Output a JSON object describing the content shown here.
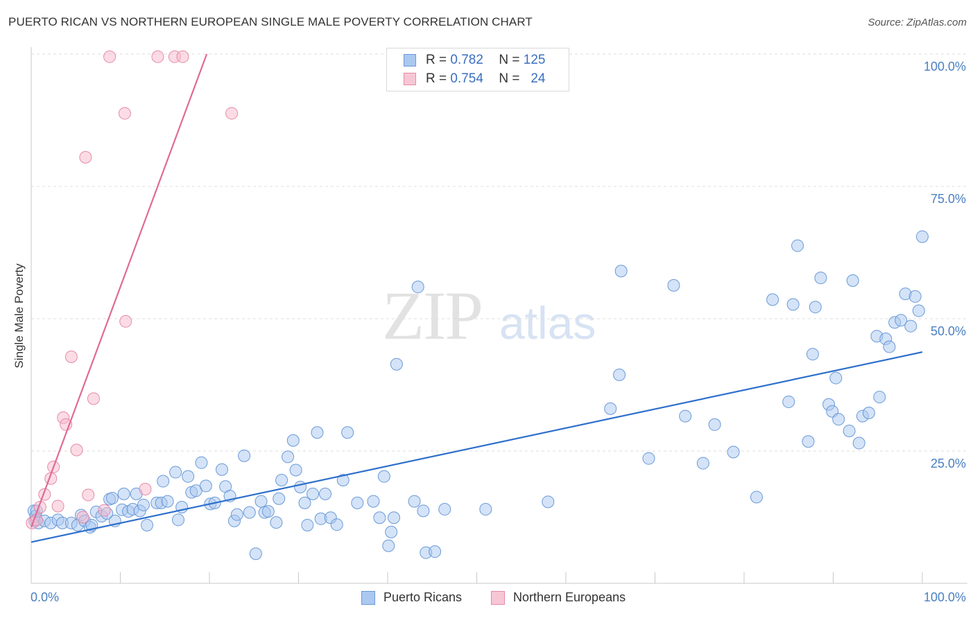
{
  "title": "PUERTO RICAN VS NORTHERN EUROPEAN SINGLE MALE POVERTY CORRELATION CHART",
  "source": "Source: ZipAtlas.com",
  "watermark": {
    "zip": "ZIP",
    "atlas": "atlas"
  },
  "legend_top": {
    "rows": [
      {
        "r_label": "R =",
        "r_value": "0.782",
        "n_label": "N =",
        "n_value": "125"
      },
      {
        "r_label": "R =",
        "r_value": "0.754",
        "n_label": "N =",
        "n_value": "24"
      }
    ]
  },
  "legend_bottom": [
    "Puerto Ricans",
    "Northern Europeans"
  ],
  "colors": {
    "blue_fill": "#aac8f0",
    "blue_stroke": "#6a9ad8",
    "blue_line": "#2d6fcb",
    "pink_fill": "#f7b9cc",
    "pink_stroke": "#e58aa8",
    "pink_line": "#e06a95",
    "grid": "#dedede",
    "axis_label": "#4a7fc1"
  },
  "chart_data": {
    "type": "scatter",
    "title": "PUERTO RICAN VS NORTHERN EUROPEAN SINGLE MALE POVERTY CORRELATION CHART",
    "xlabel": "",
    "ylabel": "Single Male Poverty",
    "xlim": [
      0,
      100
    ],
    "ylim": [
      0,
      102
    ],
    "x_tick_labels": [
      "0.0%",
      "100.0%"
    ],
    "y_tick_labels": [
      "25.0%",
      "50.0%",
      "75.0%",
      "100.0%"
    ],
    "y_ticks": [
      25,
      50,
      75,
      100
    ],
    "grid": "horizontal dashed",
    "legend_placement": "top-center",
    "series": [
      {
        "name": "Puerto Ricans",
        "color": "#6a9ad8",
        "r": 0.782,
        "n": 125,
        "trend": {
          "x": [
            0,
            100
          ],
          "y": [
            7.8,
            43.7
          ]
        },
        "points": [
          [
            0.3,
            13.7
          ],
          [
            0.4,
            11.8
          ],
          [
            0.5,
            12.7
          ],
          [
            0.6,
            13.7
          ],
          [
            0.8,
            11.4
          ],
          [
            1.5,
            11.8
          ],
          [
            2.2,
            11.4
          ],
          [
            3.0,
            12.0
          ],
          [
            3.5,
            11.4
          ],
          [
            4.5,
            11.4
          ],
          [
            5.2,
            11.0
          ],
          [
            5.6,
            12.9
          ],
          [
            6.0,
            11.8
          ],
          [
            6.6,
            10.6
          ],
          [
            6.8,
            11.0
          ],
          [
            7.3,
            13.5
          ],
          [
            7.9,
            12.7
          ],
          [
            8.5,
            13.2
          ],
          [
            8.8,
            15.9
          ],
          [
            9.1,
            16.1
          ],
          [
            9.4,
            11.8
          ],
          [
            10.2,
            13.9
          ],
          [
            10.4,
            16.9
          ],
          [
            10.9,
            13.6
          ],
          [
            11.4,
            14.0
          ],
          [
            11.8,
            16.9
          ],
          [
            12.2,
            13.7
          ],
          [
            12.6,
            14.8
          ],
          [
            13.0,
            11.0
          ],
          [
            14.1,
            15.2
          ],
          [
            14.6,
            15.2
          ],
          [
            14.8,
            19.3
          ],
          [
            15.3,
            15.5
          ],
          [
            16.2,
            21.0
          ],
          [
            16.5,
            12.0
          ],
          [
            16.9,
            14.4
          ],
          [
            17.6,
            20.2
          ],
          [
            18.0,
            17.2
          ],
          [
            18.5,
            17.5
          ],
          [
            19.1,
            22.8
          ],
          [
            19.6,
            18.4
          ],
          [
            20.1,
            15.0
          ],
          [
            20.6,
            15.2
          ],
          [
            21.4,
            21.5
          ],
          [
            21.8,
            18.3
          ],
          [
            22.3,
            16.5
          ],
          [
            22.8,
            11.8
          ],
          [
            23.1,
            13.0
          ],
          [
            23.9,
            24.1
          ],
          [
            24.5,
            13.4
          ],
          [
            25.2,
            5.6
          ],
          [
            25.8,
            15.5
          ],
          [
            26.2,
            13.4
          ],
          [
            26.6,
            13.6
          ],
          [
            27.5,
            11.5
          ],
          [
            27.8,
            16.0
          ],
          [
            28.1,
            19.5
          ],
          [
            28.8,
            23.9
          ],
          [
            29.4,
            27.0
          ],
          [
            29.7,
            21.4
          ],
          [
            30.2,
            18.2
          ],
          [
            30.7,
            15.2
          ],
          [
            31.0,
            11.0
          ],
          [
            31.6,
            16.9
          ],
          [
            32.1,
            28.5
          ],
          [
            32.5,
            12.2
          ],
          [
            33.0,
            16.9
          ],
          [
            33.6,
            12.4
          ],
          [
            34.3,
            11.1
          ],
          [
            35.0,
            19.5
          ],
          [
            35.5,
            28.5
          ],
          [
            36.6,
            15.2
          ],
          [
            38.4,
            15.5
          ],
          [
            39.1,
            12.4
          ],
          [
            39.6,
            20.2
          ],
          [
            40.1,
            7.1
          ],
          [
            40.4,
            9.7
          ],
          [
            40.7,
            12.4
          ],
          [
            41.0,
            41.4
          ],
          [
            43.0,
            15.5
          ],
          [
            43.4,
            56.0
          ],
          [
            44.0,
            13.7
          ],
          [
            44.3,
            5.8
          ],
          [
            45.3,
            6.0
          ],
          [
            46.4,
            14.0
          ],
          [
            51.0,
            14.0
          ],
          [
            58.0,
            15.4
          ],
          [
            65.0,
            33.0
          ],
          [
            66.0,
            39.4
          ],
          [
            66.2,
            59.0
          ],
          [
            69.3,
            23.6
          ],
          [
            72.1,
            56.3
          ],
          [
            73.4,
            31.6
          ],
          [
            75.4,
            22.7
          ],
          [
            76.7,
            30.0
          ],
          [
            78.8,
            24.8
          ],
          [
            81.4,
            16.3
          ],
          [
            83.2,
            53.6
          ],
          [
            85.0,
            34.3
          ],
          [
            85.5,
            52.7
          ],
          [
            86.0,
            63.8
          ],
          [
            87.2,
            26.8
          ],
          [
            87.7,
            43.3
          ],
          [
            88.0,
            52.2
          ],
          [
            88.6,
            57.7
          ],
          [
            89.5,
            33.8
          ],
          [
            89.9,
            32.5
          ],
          [
            90.3,
            38.8
          ],
          [
            90.6,
            31.0
          ],
          [
            91.8,
            28.8
          ],
          [
            92.2,
            57.2
          ],
          [
            92.9,
            26.5
          ],
          [
            93.3,
            31.6
          ],
          [
            94.0,
            32.2
          ],
          [
            94.9,
            46.7
          ],
          [
            95.2,
            35.2
          ],
          [
            95.9,
            46.2
          ],
          [
            96.3,
            44.7
          ],
          [
            96.9,
            49.3
          ],
          [
            97.6,
            49.7
          ],
          [
            98.1,
            54.7
          ],
          [
            98.7,
            48.6
          ],
          [
            99.2,
            54.2
          ],
          [
            99.6,
            51.5
          ],
          [
            100.0,
            65.5
          ]
        ]
      },
      {
        "name": "Northern Europeans",
        "color": "#e58aa8",
        "r": 0.754,
        "n": 24,
        "trend": {
          "x": [
            0,
            19.7
          ],
          "y": [
            10.6,
            100
          ]
        },
        "points": [
          [
            0.1,
            11.4
          ],
          [
            0.6,
            12.0
          ],
          [
            1.0,
            14.4
          ],
          [
            1.5,
            16.8
          ],
          [
            2.2,
            19.8
          ],
          [
            2.5,
            22.0
          ],
          [
            3.0,
            14.6
          ],
          [
            3.6,
            31.3
          ],
          [
            3.9,
            30.0
          ],
          [
            4.5,
            42.8
          ],
          [
            5.1,
            25.2
          ],
          [
            5.8,
            12.5
          ],
          [
            6.1,
            80.5
          ],
          [
            6.4,
            16.7
          ],
          [
            7.0,
            34.9
          ],
          [
            8.2,
            13.8
          ],
          [
            8.8,
            99.5
          ],
          [
            10.5,
            88.8
          ],
          [
            10.6,
            49.5
          ],
          [
            12.8,
            17.8
          ],
          [
            14.2,
            99.5
          ],
          [
            16.1,
            99.5
          ],
          [
            17.0,
            99.5
          ],
          [
            22.5,
            88.8
          ]
        ]
      }
    ]
  }
}
